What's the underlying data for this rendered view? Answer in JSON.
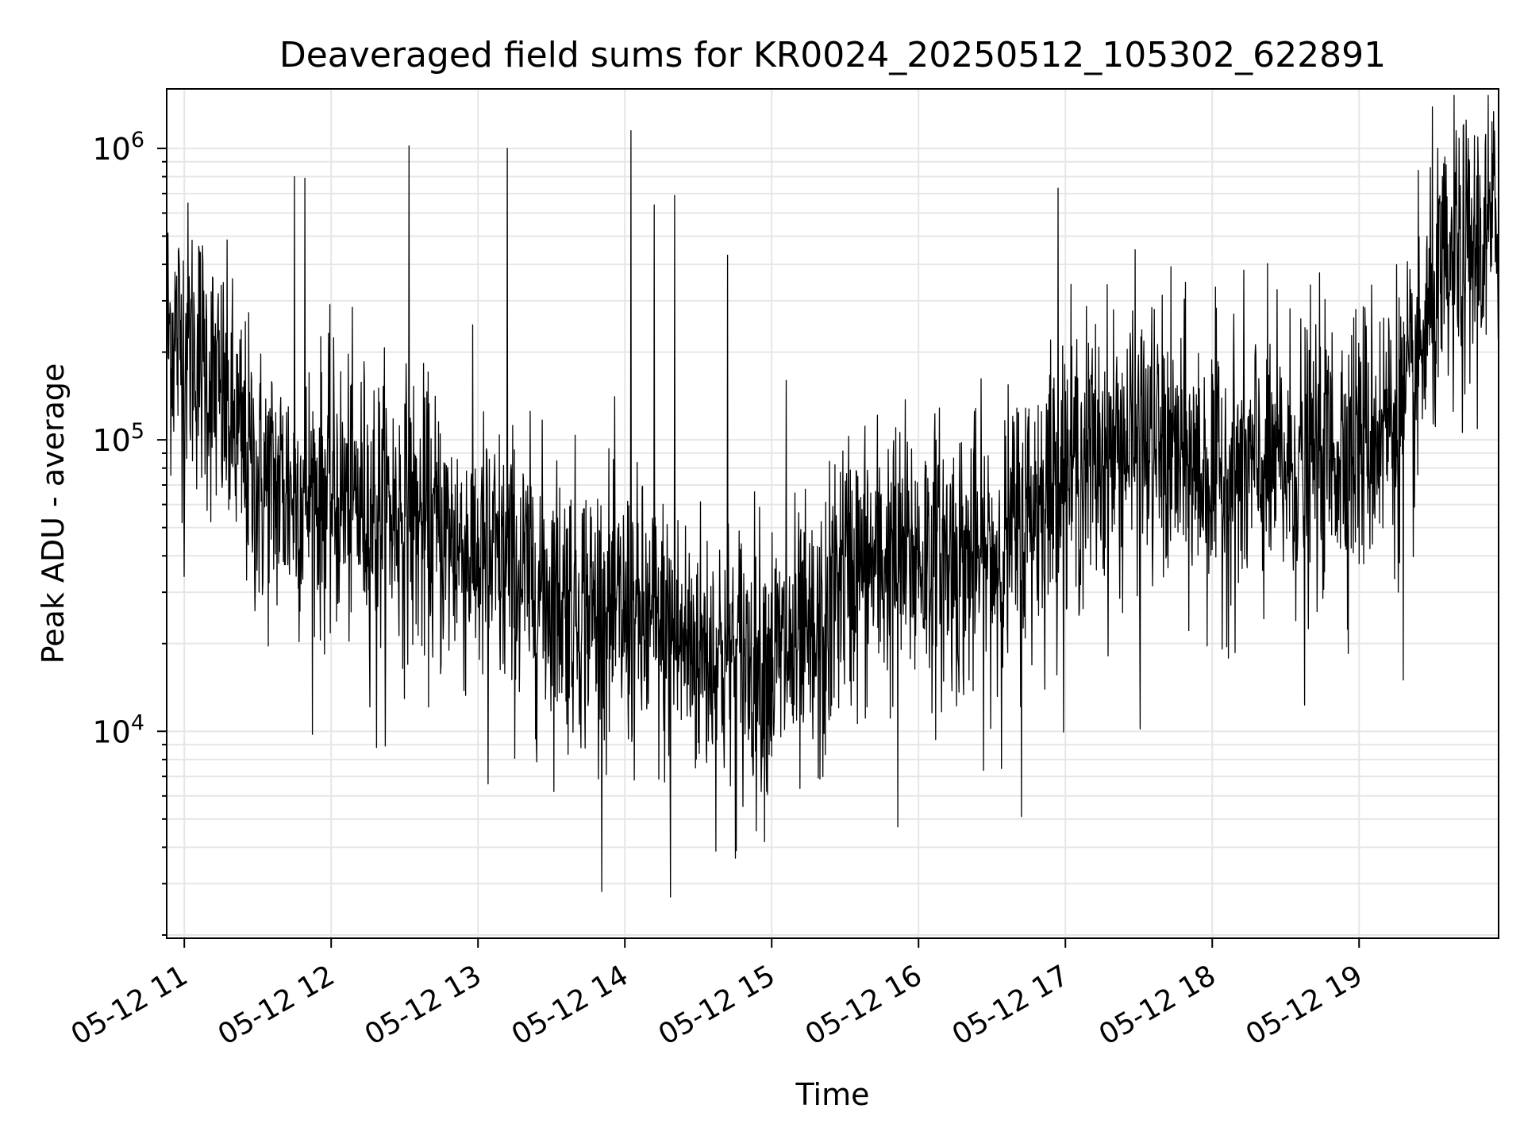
{
  "chart_data": {
    "type": "line",
    "title": "Deaveraged field sums for KR0024_20250512_105302_622891",
    "xlabel": "Time",
    "ylabel": "Peak ADU - average",
    "x_ticks": [
      "05-12 11",
      "05-12 12",
      "05-12 13",
      "05-12 14",
      "05-12 15",
      "05-12 16",
      "05-12 17",
      "05-12 18",
      "05-12 19"
    ],
    "x_tick_hours": [
      11,
      12,
      13,
      14,
      15,
      16,
      17,
      18,
      19
    ],
    "x_range_hours": [
      10.88,
      19.95
    ],
    "y_scale": "log",
    "y_ticks": [
      {
        "base": "10",
        "exp": "4",
        "value": 10000
      },
      {
        "base": "10",
        "exp": "5",
        "value": 100000
      },
      {
        "base": "10",
        "exp": "6",
        "value": 1000000
      }
    ],
    "ylim": [
      1950,
      1600000
    ],
    "grid": true,
    "line_color": "#000000",
    "series": [
      {
        "profile": [
          {
            "t": 10.88,
            "y": 240000
          },
          {
            "t": 11.1,
            "y": 200000
          },
          {
            "t": 11.3,
            "y": 120000
          },
          {
            "t": 11.5,
            "y": 70000
          },
          {
            "t": 12.0,
            "y": 65000
          },
          {
            "t": 12.5,
            "y": 55000
          },
          {
            "t": 13.0,
            "y": 40000
          },
          {
            "t": 13.5,
            "y": 30000
          },
          {
            "t": 14.0,
            "y": 24000
          },
          {
            "t": 14.5,
            "y": 19000
          },
          {
            "t": 15.0,
            "y": 17500
          },
          {
            "t": 15.35,
            "y": 19000
          },
          {
            "t": 15.45,
            "y": 35000
          },
          {
            "t": 16.0,
            "y": 40000
          },
          {
            "t": 16.5,
            "y": 38000
          },
          {
            "t": 16.9,
            "y": 70000
          },
          {
            "t": 17.0,
            "y": 80000
          },
          {
            "t": 17.5,
            "y": 100000
          },
          {
            "t": 18.0,
            "y": 75000
          },
          {
            "t": 18.5,
            "y": 80000
          },
          {
            "t": 19.0,
            "y": 100000
          },
          {
            "t": 19.35,
            "y": 130000
          },
          {
            "t": 19.5,
            "y": 300000
          },
          {
            "t": 19.95,
            "y": 550000
          }
        ],
        "spikes": [
          {
            "t": 14.04,
            "y": 1150000
          },
          {
            "t": 12.53,
            "y": 1020000
          },
          {
            "t": 13.2,
            "y": 1000000
          },
          {
            "t": 19.66,
            "y": 1150000
          },
          {
            "t": 11.75,
            "y": 800000
          },
          {
            "t": 11.82,
            "y": 790000
          },
          {
            "t": 16.95,
            "y": 730000
          },
          {
            "t": 14.34,
            "y": 690000
          },
          {
            "t": 14.2,
            "y": 640000
          },
          {
            "t": 14.7,
            "y": 430000
          },
          {
            "t": 15.1,
            "y": 160000
          },
          {
            "t": 14.31,
            "y": 2700
          },
          {
            "t": 14.76,
            "y": 3900
          },
          {
            "t": 15.86,
            "y": 4700
          },
          {
            "t": 16.7,
            "y": 5100
          },
          {
            "t": 13.07,
            "y": 6600
          },
          {
            "t": 17.51,
            "y": 10200
          },
          {
            "t": 18.63,
            "y": 12300
          },
          {
            "t": 19.3,
            "y": 15000
          },
          {
            "t": 11.0,
            "y": 34000
          },
          {
            "t": 12.31,
            "y": 8800
          }
        ]
      }
    ]
  }
}
